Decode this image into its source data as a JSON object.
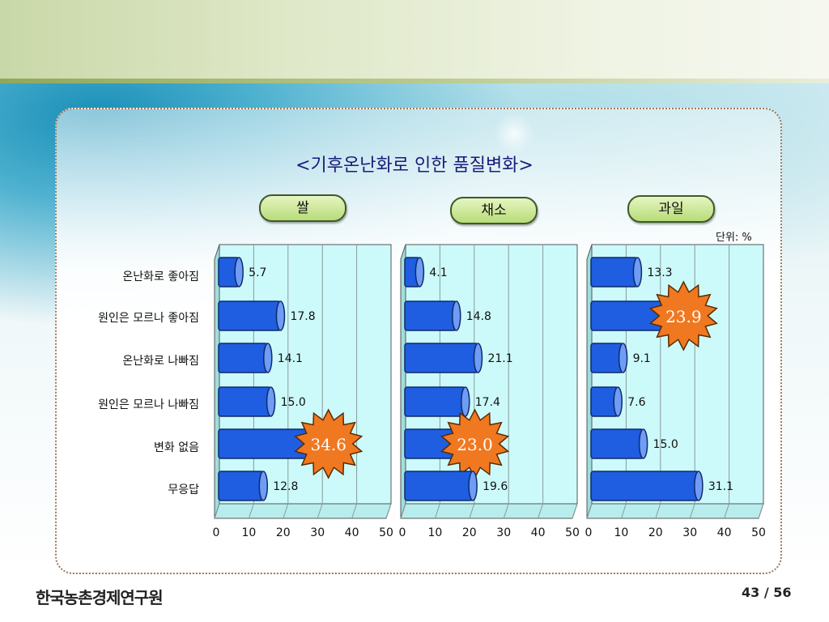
{
  "title": "<기후온난화로 인한 품질변화>",
  "unit_label": "단위: %",
  "categories": [
    "온난화로 좋아짐",
    "원인은 모르나 좋아짐",
    "온난화로 나빠짐",
    "원인은 모르나 나빠짐",
    "변화 없음",
    "무응답"
  ],
  "chart_data": [
    {
      "type": "bar",
      "title": "쌀",
      "categories": [
        "온난화로 좋아짐",
        "원인은 모르나 좋아짐",
        "온난화로 나빠짐",
        "원인은 모르나 나빠짐",
        "변화 없음",
        "무응답"
      ],
      "values": [
        5.7,
        17.8,
        14.1,
        15.0,
        34.6,
        12.8
      ],
      "labels": [
        "5.7",
        "17.8",
        "14.1",
        "15.0",
        "34.6",
        "12.8"
      ],
      "highlight_index": 4,
      "xlim": [
        0,
        50
      ],
      "ticks": [
        "0",
        "10",
        "20",
        "30",
        "40",
        "50"
      ]
    },
    {
      "type": "bar",
      "title": "채소",
      "categories": [
        "온난화로 좋아짐",
        "원인은 모르나 좋아짐",
        "온난화로 나빠짐",
        "원인은 모르나 나빠짐",
        "변화 없음",
        "무응답"
      ],
      "values": [
        4.1,
        14.8,
        21.1,
        17.4,
        23.0,
        19.6
      ],
      "labels": [
        "4.1",
        "14.8",
        "21.1",
        "17.4",
        "23.0",
        "19.6"
      ],
      "highlight_index": 4,
      "xlim": [
        0,
        50
      ],
      "ticks": [
        "0",
        "10",
        "20",
        "30",
        "40",
        "50"
      ]
    },
    {
      "type": "bar",
      "title": "과일",
      "categories": [
        "온난화로 좋아짐",
        "원인은 모르나 좋아짐",
        "온난화로 나빠짐",
        "원인은 모르나 나빠짐",
        "변화 없음",
        "무응답"
      ],
      "values": [
        13.3,
        23.9,
        9.1,
        7.6,
        15.0,
        31.1
      ],
      "labels": [
        "13.3",
        "23.9",
        "9.1",
        "7.6",
        "15.0",
        "31.1"
      ],
      "highlight_index": 1,
      "xlim": [
        0,
        50
      ],
      "ticks": [
        "0",
        "10",
        "20",
        "30",
        "40",
        "50"
      ]
    }
  ],
  "colors": {
    "bar": "#1f5ee0",
    "bar_cap": "#6f9cf5",
    "plot_bg": "#ccfafa",
    "grid": "#8a9a9a",
    "burst": "#f07820",
    "burst_text": "#ffffff"
  },
  "footer": {
    "org_name": "한국농촌경제연구원",
    "page": "43 / 56"
  }
}
